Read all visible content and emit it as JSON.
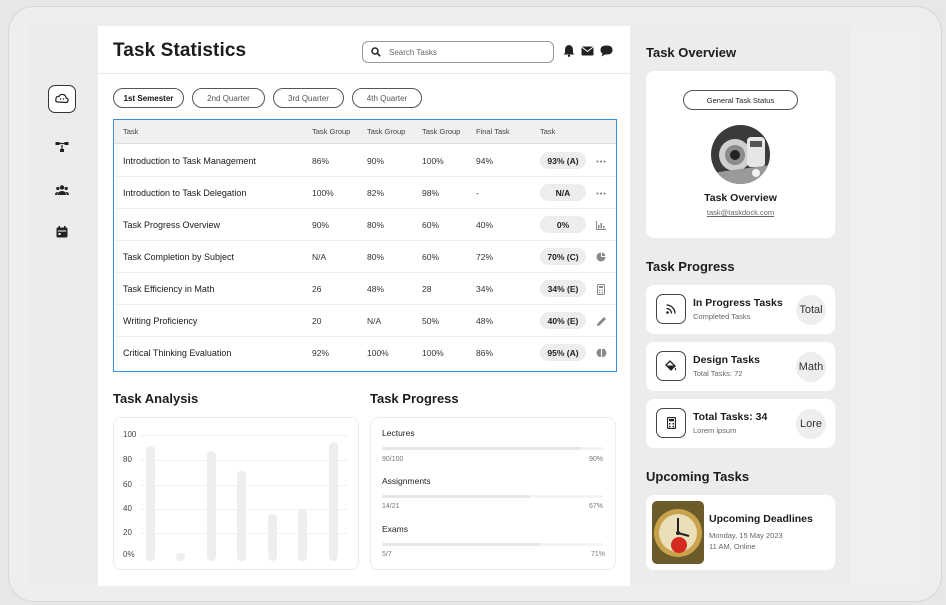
{
  "header": {
    "title": "Task Statistics",
    "search_placeholder": "Search Tasks"
  },
  "tabs": [
    "1st Semester",
    "2nd Quarter",
    "3rd Quarter",
    "4th Quarter"
  ],
  "table": {
    "columns": [
      "Task",
      "Task Group",
      "Task Group",
      "Task Group",
      "Final Task",
      "Task"
    ],
    "rows": [
      {
        "name": "Introduction to Task Management",
        "g1": "86%",
        "g2": "90%",
        "g3": "100%",
        "final": "94%",
        "grade": "93% (A)",
        "icon": "more-icon"
      },
      {
        "name": "Introduction to Task Delegation",
        "g1": "100%",
        "g2": "82%",
        "g3": "98%",
        "final": "-",
        "grade": "N/A",
        "icon": "more-icon"
      },
      {
        "name": "Task Progress Overview",
        "g1": "90%",
        "g2": "80%",
        "g3": "60%",
        "final": "40%",
        "grade": "0%",
        "icon": "chart-icon"
      },
      {
        "name": "Task Completion by Subject",
        "g1": "N/A",
        "g2": "80%",
        "g3": "60%",
        "final": "72%",
        "grade": "70% (C)",
        "icon": "pie-icon"
      },
      {
        "name": "Task Efficiency in Math",
        "g1": "26",
        "g2": "48%",
        "g3": "28",
        "final": "34%",
        "grade": "34% (E)",
        "icon": "calculator-icon"
      },
      {
        "name": "Writing Proficiency",
        "g1": "20",
        "g2": "N/A",
        "g3": "50%",
        "final": "48%",
        "grade": "40% (E)",
        "icon": "pencil-icon"
      },
      {
        "name": "Critical Thinking Evaluation",
        "g1": "92%",
        "g2": "100%",
        "g3": "100%",
        "final": "86%",
        "grade": "95% (A)",
        "icon": "brain-icon"
      }
    ]
  },
  "analysis": {
    "title": "Task Analysis",
    "y_labels": [
      "100",
      "80",
      "60",
      "40",
      "20",
      "0%"
    ]
  },
  "chart_data": {
    "type": "bar",
    "title": "Task Analysis",
    "ylim": [
      0,
      100
    ],
    "y_ticks": [
      "100",
      "80",
      "60",
      "40",
      "20",
      "0%"
    ],
    "values": [
      96,
      3,
      92,
      75,
      39,
      43,
      99
    ]
  },
  "progress": {
    "title": "Task Progress",
    "items": [
      {
        "label": "Lectures",
        "count": "90/100",
        "percent": "90%",
        "value": 90
      },
      {
        "label": "Assignments",
        "count": "14/21",
        "percent": "67%",
        "value": 67
      },
      {
        "label": "Exams",
        "count": "5/7",
        "percent": "71%",
        "value": 71
      }
    ]
  },
  "overview": {
    "title": "Task Overview",
    "status_button": "General Task Status",
    "name": "Task Overview",
    "email": "task@taskdock.com"
  },
  "task_progress": {
    "title": "Task Progress",
    "cards": [
      {
        "title": "In Progress Tasks",
        "sub": "Completed Tasks",
        "badge": "Total",
        "icon": "rss-icon"
      },
      {
        "title": "Design Tasks",
        "sub": "Total Tasks: 72",
        "badge": "Math",
        "icon": "paint-bucket-icon"
      },
      {
        "title": "Total Tasks: 34",
        "sub": "Lorem ipsum",
        "badge": "Lore",
        "icon": "calculator-icon"
      }
    ]
  },
  "upcoming": {
    "title": "Upcoming Tasks",
    "card_title": "Upcoming Deadlines",
    "date": "Monday, 15 May 2023",
    "time": "11 AM, Online"
  },
  "colors": {
    "accent_border": "#3a8fd8",
    "pill_bg": "#ededed"
  }
}
